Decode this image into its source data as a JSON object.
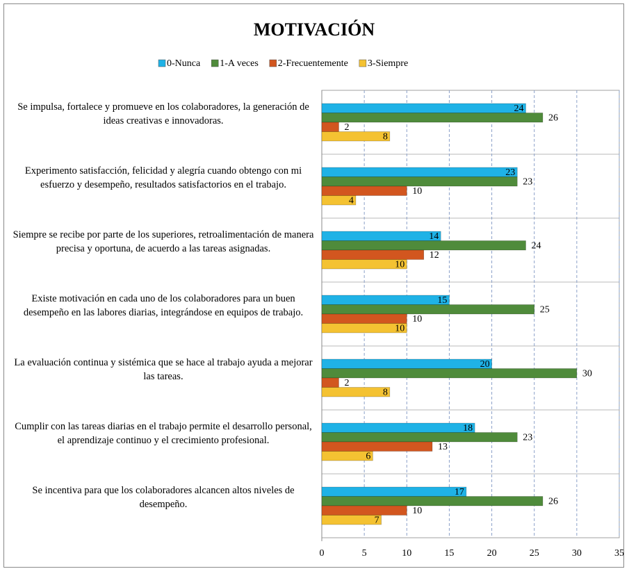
{
  "chart_data": {
    "type": "bar",
    "orientation": "horizontal",
    "title": "MOTIVACIÓN",
    "categories": [
      "Se impulsa, fortalece y promueve en los colaboradores, la generación de ideas creativas e innovadoras.",
      "Experimento satisfacción, felicidad y alegría cuando obtengo con mi esfuerzo y desempeño, resultados satisfactorios en el trabajo.",
      "Siempre se recibe por parte de los superiores, retroalimentación de manera precisa y oportuna, de acuerdo a las tareas asignadas.",
      "Existe motivación en cada uno de los colaboradores para un buen desempeño en las labores diarias, integrándose en equipos de trabajo.",
      "La evaluación continua y sistémica que se hace al trabajo ayuda a mejorar las tareas.",
      "Cumplir con las tareas diarias en el trabajo permite el desarrollo personal, el aprendizaje continuo y el crecimiento profesional.",
      "Se incentiva para que los colaboradores alcancen altos niveles de desempeño."
    ],
    "series": [
      {
        "name": "0-Nunca",
        "color": "#1fb2e6",
        "values": [
          24,
          23,
          14,
          15,
          20,
          18,
          17
        ]
      },
      {
        "name": "1-A veces",
        "color": "#4f8b3b",
        "values": [
          26,
          23,
          24,
          25,
          30,
          23,
          26
        ]
      },
      {
        "name": "2-Frecuentemente",
        "color": "#d2561f",
        "values": [
          2,
          10,
          12,
          10,
          2,
          13,
          10
        ]
      },
      {
        "name": "3-Siempre",
        "color": "#f4c232",
        "values": [
          8,
          4,
          10,
          10,
          8,
          6,
          7
        ]
      }
    ],
    "xlim": [
      0,
      35
    ],
    "xticks": [
      0,
      5,
      10,
      15,
      20,
      25,
      30,
      35
    ],
    "grid": true,
    "legend": "top"
  }
}
